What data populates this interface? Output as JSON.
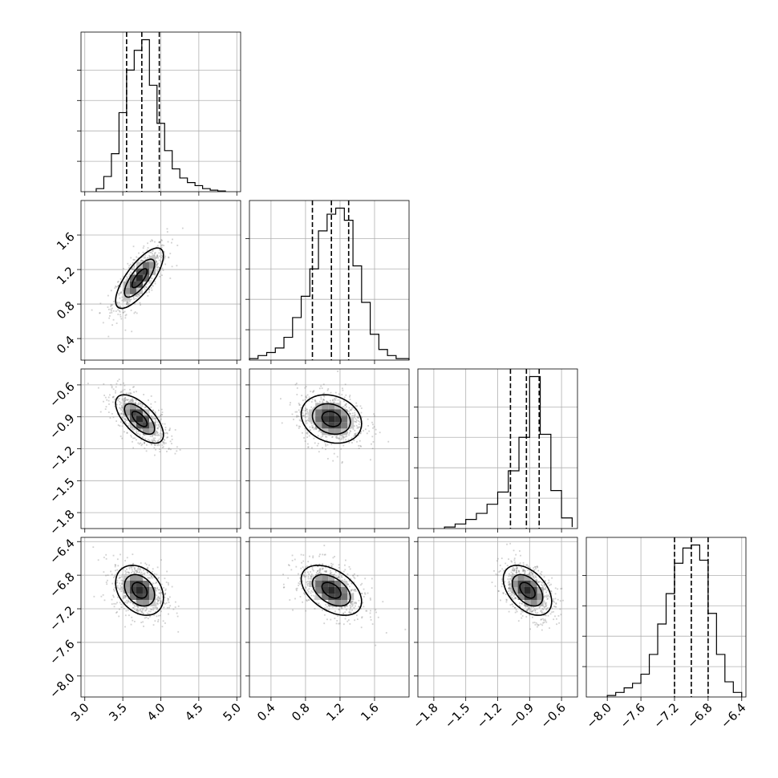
{
  "chart_data": {
    "type": "corner",
    "grid": true,
    "parameters": [
      {
        "index": 0,
        "range": [
          2.95,
          5.05
        ],
        "ticks": [
          3.0,
          3.5,
          4.0,
          4.5,
          5.0
        ],
        "tick_labels": [
          "3.0",
          "3.5",
          "4.0",
          "4.5",
          "5.0"
        ],
        "quantiles": [
          3.55,
          3.75,
          3.98
        ],
        "hist_edges": [
          3.15,
          3.25,
          3.35,
          3.45,
          3.55,
          3.65,
          3.75,
          3.85,
          3.95,
          4.05,
          4.15,
          4.25,
          4.35,
          4.45,
          4.55,
          4.65,
          4.75,
          4.85
        ],
        "hist_counts": [
          0.02,
          0.1,
          0.25,
          0.52,
          0.8,
          0.93,
          1.0,
          0.7,
          0.45,
          0.27,
          0.15,
          0.09,
          0.06,
          0.04,
          0.02,
          0.01,
          0.005
        ]
      },
      {
        "index": 1,
        "range": [
          0.15,
          2.0
        ],
        "ticks": [
          0.4,
          0.8,
          1.2,
          1.6
        ],
        "tick_labels": [
          "0.4",
          "0.8",
          "1.2",
          "1.6"
        ],
        "quantiles": [
          0.88,
          1.1,
          1.3
        ],
        "hist_edges": [
          0.15,
          0.25,
          0.35,
          0.45,
          0.55,
          0.65,
          0.75,
          0.85,
          0.95,
          1.05,
          1.15,
          1.25,
          1.35,
          1.45,
          1.55,
          1.65,
          1.75,
          1.85,
          2.0
        ],
        "hist_counts": [
          0.01,
          0.03,
          0.05,
          0.08,
          0.15,
          0.28,
          0.42,
          0.6,
          0.85,
          0.96,
          1.0,
          0.92,
          0.62,
          0.38,
          0.17,
          0.07,
          0.03,
          0.01
        ]
      },
      {
        "index": 2,
        "range": [
          -1.95,
          -0.45
        ],
        "ticks": [
          -1.8,
          -1.5,
          -1.2,
          -0.9,
          -0.6
        ],
        "tick_labels": [
          "−1.8",
          "−1.5",
          "−1.2",
          "−0.9",
          "−0.6"
        ],
        "quantiles": [
          -1.08,
          -0.93,
          -0.81
        ],
        "hist_edges": [
          -1.7,
          -1.6,
          -1.5,
          -1.4,
          -1.3,
          -1.2,
          -1.1,
          -1.0,
          -0.9,
          -0.8,
          -0.7,
          -0.6,
          -0.5
        ],
        "hist_counts": [
          0.01,
          0.03,
          0.06,
          0.1,
          0.16,
          0.24,
          0.38,
          0.6,
          1.0,
          0.62,
          0.25,
          0.07,
          0.01
        ]
      },
      {
        "index": 3,
        "range": [
          -8.25,
          -6.35
        ],
        "ticks": [
          -8.0,
          -7.6,
          -7.2,
          -6.8,
          -6.4
        ],
        "tick_labels": [
          "−8.0",
          "−7.6",
          "−7.2",
          "−6.8",
          "−6.4"
        ],
        "quantiles": [
          -7.2,
          -7.0,
          -6.8
        ],
        "hist_edges": [
          -8.0,
          -7.9,
          -7.8,
          -7.7,
          -7.6,
          -7.5,
          -7.4,
          -7.3,
          -7.2,
          -7.1,
          -7.0,
          -6.9,
          -6.8,
          -6.7,
          -6.6,
          -6.5,
          -6.4
        ],
        "hist_counts": [
          0.01,
          0.03,
          0.06,
          0.09,
          0.15,
          0.28,
          0.48,
          0.68,
          0.88,
          0.98,
          1.0,
          0.9,
          0.55,
          0.28,
          0.1,
          0.03
        ]
      }
    ],
    "pairs": [
      {
        "row": 1,
        "col": 0,
        "mean": [
          3.72,
          1.1
        ],
        "sd": [
          0.18,
          0.2
        ],
        "rho": 0.75
      },
      {
        "row": 2,
        "col": 0,
        "mean": [
          3.72,
          -0.92
        ],
        "sd": [
          0.18,
          0.13
        ],
        "rho": -0.65
      },
      {
        "row": 3,
        "col": 0,
        "mean": [
          3.72,
          -6.98
        ],
        "sd": [
          0.18,
          0.17
        ],
        "rho": -0.3
      },
      {
        "row": 2,
        "col": 1,
        "mean": [
          1.1,
          -0.92
        ],
        "sd": [
          0.2,
          0.13
        ],
        "rho": -0.2
      },
      {
        "row": 3,
        "col": 1,
        "mean": [
          1.1,
          -6.98
        ],
        "sd": [
          0.2,
          0.17
        ],
        "rho": -0.45
      },
      {
        "row": 3,
        "col": 2,
        "mean": [
          -0.92,
          -6.98
        ],
        "sd": [
          0.13,
          0.17
        ],
        "rho": -0.45
      }
    ]
  }
}
